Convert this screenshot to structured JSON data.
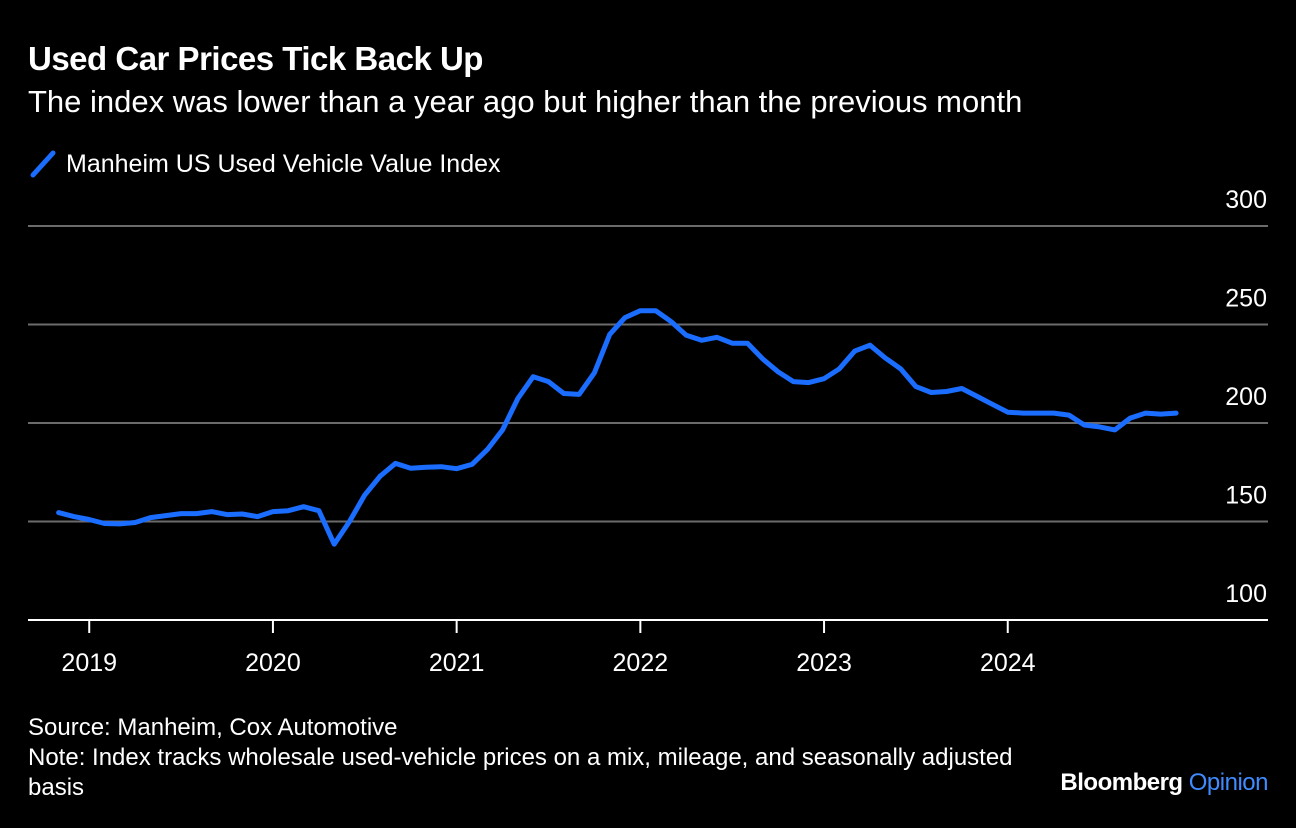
{
  "header": {
    "title": "Used Car Prices Tick Back Up",
    "subtitle": "The index was lower than a year ago but higher than the previous month"
  },
  "legend": {
    "label": "Manheim US Used Vehicle Value Index"
  },
  "footer": {
    "source": "Source: Manheim, Cox Automotive",
    "note": "Note: Index tracks wholesale used-vehicle prices on a mix, mileage, and seasonally adjusted basis",
    "brand_name": "Bloomberg",
    "brand_product": "Opinion"
  },
  "colors": {
    "background": "#000000",
    "series": "#1a6dff",
    "grid": "#6b6b6b",
    "text": "#ffffff",
    "brand_accent": "#3f8bff"
  },
  "chart_data": {
    "type": "line",
    "title": "Used Car Prices Tick Back Up",
    "subtitle": "The index was lower than a year ago but higher than the previous month",
    "xlabel": "",
    "ylabel": "",
    "ylim": [
      100,
      300
    ],
    "yticks": [
      100,
      150,
      200,
      250,
      300
    ],
    "xlim": [
      "2018-09",
      "2025-06"
    ],
    "xticks": [
      "2019",
      "2020",
      "2021",
      "2022",
      "2023",
      "2024"
    ],
    "grid": "horizontal",
    "legend_position": "top-left",
    "series": [
      {
        "name": "Manheim US Used Vehicle Value Index",
        "color": "#1a6dff",
        "points": [
          {
            "date": "2018-11",
            "value": 154.5
          },
          {
            "date": "2018-12",
            "value": 152.5
          },
          {
            "date": "2019-01",
            "value": 151.0
          },
          {
            "date": "2019-02",
            "value": 149.0
          },
          {
            "date": "2019-03",
            "value": 148.8
          },
          {
            "date": "2019-04",
            "value": 149.5
          },
          {
            "date": "2019-05",
            "value": 152.0
          },
          {
            "date": "2019-06",
            "value": 153.0
          },
          {
            "date": "2019-07",
            "value": 154.0
          },
          {
            "date": "2019-08",
            "value": 154.0
          },
          {
            "date": "2019-09",
            "value": 155.0
          },
          {
            "date": "2019-10",
            "value": 153.5
          },
          {
            "date": "2019-11",
            "value": 153.8
          },
          {
            "date": "2019-12",
            "value": 152.5
          },
          {
            "date": "2020-01",
            "value": 155.0
          },
          {
            "date": "2020-02",
            "value": 155.5
          },
          {
            "date": "2020-03",
            "value": 157.5
          },
          {
            "date": "2020-04",
            "value": 155.5
          },
          {
            "date": "2020-05",
            "value": 138.5
          },
          {
            "date": "2020-06",
            "value": 150.0
          },
          {
            "date": "2020-07",
            "value": 163.5
          },
          {
            "date": "2020-08",
            "value": 173.0
          },
          {
            "date": "2020-09",
            "value": 179.5
          },
          {
            "date": "2020-10",
            "value": 177.0
          },
          {
            "date": "2020-11",
            "value": 177.5
          },
          {
            "date": "2020-12",
            "value": 177.8
          },
          {
            "date": "2021-01",
            "value": 176.8
          },
          {
            "date": "2021-02",
            "value": 179.0
          },
          {
            "date": "2021-03",
            "value": 186.5
          },
          {
            "date": "2021-04",
            "value": 196.5
          },
          {
            "date": "2021-05",
            "value": 212.5
          },
          {
            "date": "2021-06",
            "value": 223.5
          },
          {
            "date": "2021-07",
            "value": 221.0
          },
          {
            "date": "2021-08",
            "value": 215.0
          },
          {
            "date": "2021-09",
            "value": 214.5
          },
          {
            "date": "2021-10",
            "value": 225.5
          },
          {
            "date": "2021-11",
            "value": 245.0
          },
          {
            "date": "2021-12",
            "value": 253.5
          },
          {
            "date": "2022-01",
            "value": 257.0
          },
          {
            "date": "2022-02",
            "value": 257.0
          },
          {
            "date": "2022-03",
            "value": 251.5
          },
          {
            "date": "2022-04",
            "value": 244.5
          },
          {
            "date": "2022-05",
            "value": 242.0
          },
          {
            "date": "2022-06",
            "value": 243.5
          },
          {
            "date": "2022-07",
            "value": 240.5
          },
          {
            "date": "2022-08",
            "value": 240.5
          },
          {
            "date": "2022-09",
            "value": 232.5
          },
          {
            "date": "2022-10",
            "value": 226.0
          },
          {
            "date": "2022-11",
            "value": 221.0
          },
          {
            "date": "2022-12",
            "value": 220.5
          },
          {
            "date": "2023-01",
            "value": 222.5
          },
          {
            "date": "2023-02",
            "value": 227.5
          },
          {
            "date": "2023-03",
            "value": 236.5
          },
          {
            "date": "2023-04",
            "value": 239.5
          },
          {
            "date": "2023-05",
            "value": 233.0
          },
          {
            "date": "2023-06",
            "value": 227.5
          },
          {
            "date": "2023-07",
            "value": 218.5
          },
          {
            "date": "2023-08",
            "value": 215.5
          },
          {
            "date": "2023-09",
            "value": 216.0
          },
          {
            "date": "2023-10",
            "value": 217.5
          },
          {
            "date": "2023-11",
            "value": 213.5
          },
          {
            "date": "2023-12",
            "value": 209.5
          },
          {
            "date": "2024-01",
            "value": 205.5
          },
          {
            "date": "2024-02",
            "value": 205.0
          },
          {
            "date": "2024-03",
            "value": 205.0
          },
          {
            "date": "2024-04",
            "value": 205.0
          },
          {
            "date": "2024-05",
            "value": 204.0
          },
          {
            "date": "2024-06",
            "value": 199.0
          },
          {
            "date": "2024-07",
            "value": 198.0
          },
          {
            "date": "2024-08",
            "value": 196.5
          },
          {
            "date": "2024-09",
            "value": 202.5
          },
          {
            "date": "2024-10",
            "value": 205.0
          },
          {
            "date": "2024-11",
            "value": 204.5
          },
          {
            "date": "2024-12",
            "value": 205.0
          }
        ]
      }
    ]
  }
}
